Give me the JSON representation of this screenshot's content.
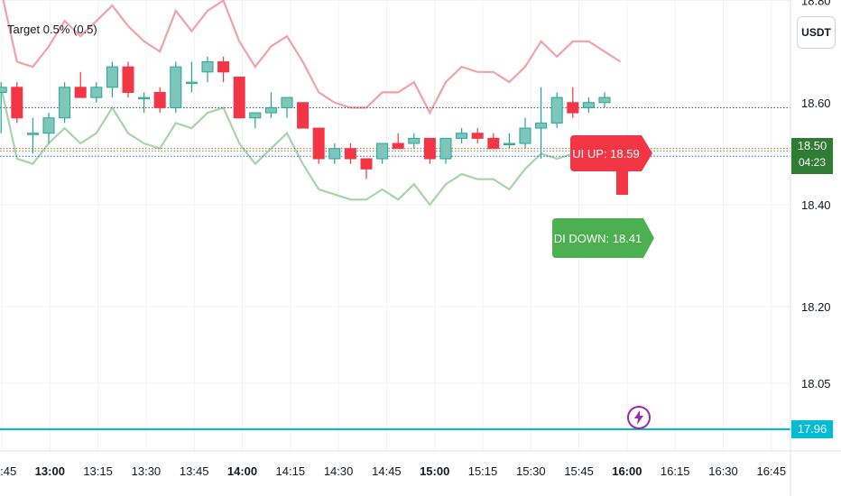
{
  "indicator": {
    "title": "Target 0.5% (0.5)"
  },
  "toolbar": {
    "currency": "USDT"
  },
  "chart_data": {
    "type": "candlestick",
    "title": "",
    "xlabel": "",
    "ylabel": "",
    "ylim": [
      17.92,
      18.85
    ],
    "y_ticks": [
      {
        "label": "18.80",
        "value": 18.8
      },
      {
        "label": "18.60",
        "value": 18.6
      },
      {
        "label": "18.40",
        "value": 18.4
      },
      {
        "label": "18.20",
        "value": 18.2
      },
      {
        "label": "18.05",
        "value": 18.05
      }
    ],
    "x_ticks": [
      {
        "label": "12:45",
        "bold": false
      },
      {
        "label": "13:00",
        "bold": true
      },
      {
        "label": "13:15",
        "bold": false
      },
      {
        "label": "13:30",
        "bold": false
      },
      {
        "label": "13:45",
        "bold": false
      },
      {
        "label": "14:00",
        "bold": true
      },
      {
        "label": "14:15",
        "bold": false
      },
      {
        "label": "14:30",
        "bold": false
      },
      {
        "label": "14:45",
        "bold": false
      },
      {
        "label": "15:00",
        "bold": true
      },
      {
        "label": "15:15",
        "bold": false
      },
      {
        "label": "15:30",
        "bold": false
      },
      {
        "label": "15:45",
        "bold": false
      },
      {
        "label": "16:00",
        "bold": true
      },
      {
        "label": "16:15",
        "bold": false
      },
      {
        "label": "16:30",
        "bold": false
      },
      {
        "label": "16:45",
        "bold": false
      }
    ],
    "candles": [
      {
        "o": 18.62,
        "h": 18.64,
        "l": 18.54,
        "c": 18.63
      },
      {
        "o": 18.63,
        "h": 18.64,
        "l": 18.56,
        "c": 18.57
      },
      {
        "o": 18.54,
        "h": 18.57,
        "l": 18.5,
        "c": 18.54
      },
      {
        "o": 18.54,
        "h": 18.58,
        "l": 18.52,
        "c": 18.57
      },
      {
        "o": 18.57,
        "h": 18.64,
        "l": 18.56,
        "c": 18.63
      },
      {
        "o": 18.63,
        "h": 18.66,
        "l": 18.61,
        "c": 18.61
      },
      {
        "o": 18.61,
        "h": 18.64,
        "l": 18.6,
        "c": 18.63
      },
      {
        "o": 18.63,
        "h": 18.68,
        "l": 18.61,
        "c": 18.67
      },
      {
        "o": 18.67,
        "h": 18.68,
        "l": 18.61,
        "c": 18.62
      },
      {
        "o": 18.61,
        "h": 18.62,
        "l": 18.58,
        "c": 18.61
      },
      {
        "o": 18.62,
        "h": 18.63,
        "l": 18.58,
        "c": 18.59
      },
      {
        "o": 18.59,
        "h": 18.68,
        "l": 18.58,
        "c": 18.67
      },
      {
        "o": 18.64,
        "h": 18.68,
        "l": 18.62,
        "c": 18.64
      },
      {
        "o": 18.66,
        "h": 18.69,
        "l": 18.64,
        "c": 18.68
      },
      {
        "o": 18.68,
        "h": 18.69,
        "l": 18.64,
        "c": 18.66
      },
      {
        "o": 18.65,
        "h": 18.65,
        "l": 18.57,
        "c": 18.57
      },
      {
        "o": 18.57,
        "h": 18.58,
        "l": 18.55,
        "c": 18.58
      },
      {
        "o": 18.58,
        "h": 18.62,
        "l": 18.57,
        "c": 18.59
      },
      {
        "o": 18.59,
        "h": 18.61,
        "l": 18.57,
        "c": 18.61
      },
      {
        "o": 18.6,
        "h": 18.6,
        "l": 18.55,
        "c": 18.55
      },
      {
        "o": 18.55,
        "h": 18.55,
        "l": 18.48,
        "c": 18.49
      },
      {
        "o": 18.49,
        "h": 18.52,
        "l": 18.48,
        "c": 18.51
      },
      {
        "o": 18.51,
        "h": 18.52,
        "l": 18.48,
        "c": 18.49
      },
      {
        "o": 18.49,
        "h": 18.49,
        "l": 18.45,
        "c": 18.47
      },
      {
        "o": 18.49,
        "h": 18.52,
        "l": 18.48,
        "c": 18.52
      },
      {
        "o": 18.52,
        "h": 18.54,
        "l": 18.51,
        "c": 18.51
      },
      {
        "o": 18.52,
        "h": 18.54,
        "l": 18.51,
        "c": 18.53
      },
      {
        "o": 18.53,
        "h": 18.53,
        "l": 18.48,
        "c": 18.49
      },
      {
        "o": 18.49,
        "h": 18.53,
        "l": 18.48,
        "c": 18.53
      },
      {
        "o": 18.53,
        "h": 18.55,
        "l": 18.52,
        "c": 18.54
      },
      {
        "o": 18.54,
        "h": 18.55,
        "l": 18.52,
        "c": 18.53
      },
      {
        "o": 18.53,
        "h": 18.54,
        "l": 18.51,
        "c": 18.51
      },
      {
        "o": 18.52,
        "h": 18.54,
        "l": 18.51,
        "c": 18.52
      },
      {
        "o": 18.52,
        "h": 18.57,
        "l": 18.51,
        "c": 18.55
      },
      {
        "o": 18.55,
        "h": 18.63,
        "l": 18.49,
        "c": 18.56
      },
      {
        "o": 18.56,
        "h": 18.62,
        "l": 18.55,
        "c": 18.61
      },
      {
        "o": 18.6,
        "h": 18.63,
        "l": 18.57,
        "c": 18.58
      },
      {
        "o": 18.59,
        "h": 18.61,
        "l": 18.58,
        "c": 18.6
      },
      {
        "o": 18.6,
        "h": 18.62,
        "l": 18.59,
        "c": 18.61
      }
    ],
    "series": [
      {
        "name": "",
        "color": "#f2a2a7",
        "values": [
          18.82,
          18.68,
          18.67,
          18.71,
          18.76,
          18.73,
          18.76,
          18.79,
          18.75,
          18.72,
          18.7,
          18.78,
          18.74,
          18.78,
          18.8,
          18.72,
          18.67,
          18.71,
          18.73,
          18.68,
          18.62,
          18.6,
          18.59,
          18.59,
          18.62,
          18.62,
          18.64,
          18.58,
          18.64,
          18.67,
          18.66,
          18.66,
          18.64,
          18.67,
          18.72,
          18.69,
          18.72,
          18.72,
          18.7,
          18.68
        ]
      },
      {
        "name": "",
        "color": "#a5d6a7",
        "values": [
          18.63,
          18.49,
          18.48,
          18.52,
          18.55,
          18.52,
          18.54,
          18.59,
          18.54,
          18.52,
          18.51,
          18.56,
          18.55,
          18.58,
          18.59,
          18.52,
          18.48,
          18.51,
          18.54,
          18.48,
          18.43,
          18.42,
          18.41,
          18.41,
          18.43,
          18.41,
          18.44,
          18.4,
          18.44,
          18.46,
          18.45,
          18.45,
          18.43,
          18.47,
          18.5,
          18.49,
          18.5,
          18.51,
          18.49,
          18.48
        ]
      }
    ],
    "hlines": [
      {
        "value": 18.59,
        "color": "#434651"
      },
      {
        "value": 18.51,
        "color": "#f23645"
      },
      {
        "value": 18.505,
        "color": "#4caf50"
      },
      {
        "value": 18.495,
        "color": "#2962ff"
      },
      {
        "value": 17.96,
        "color": "#00bcd4"
      }
    ],
    "labels": {
      "up": "UI UP: 18.59",
      "down": "DI DOWN: 18.41"
    },
    "last_price": {
      "price": "18.50",
      "countdown": "04:23",
      "color": "#2e7d32"
    },
    "line_price": {
      "price": "17.96",
      "color": "#00bcd4"
    }
  },
  "colors": {
    "up": "#26a69a",
    "down": "#f23645",
    "up_fill": "#7dc6b9"
  },
  "event_icon": "lightning-icon"
}
